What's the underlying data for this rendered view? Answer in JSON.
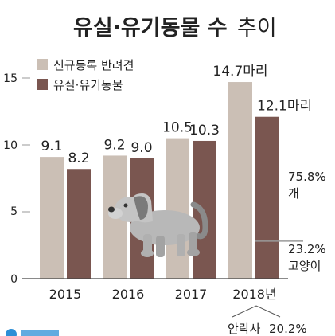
{
  "chart_data": {
    "type": "bar",
    "title_main": "유실·유기동물 수",
    "title_sub": "추이",
    "legend": [
      "신규등록 반려견",
      "유실·유기동물"
    ],
    "categories": [
      "2015",
      "2016",
      "2017",
      "2018년"
    ],
    "series": [
      {
        "name": "신규등록 반려견",
        "values": [
          9.1,
          9.2,
          10.5,
          14.7
        ],
        "labels": [
          "9.1",
          "9.2",
          "10.5",
          "14.7마리"
        ],
        "color": "#cbbfb5"
      },
      {
        "name": "유실·유기동물",
        "values": [
          8.2,
          9.0,
          10.3,
          12.1
        ],
        "labels": [
          "8.2",
          "9.0",
          "10.3",
          "12.1마리"
        ],
        "color": "#7a5650"
      }
    ],
    "y_ticks": [
      "0",
      "5",
      "10",
      "15"
    ],
    "ylim": [
      0,
      15
    ],
    "breakdown_2018": {
      "split_fraction": 0.232,
      "dog_label": "75.8%",
      "dog_unit": "개",
      "cat_label": "23.2%",
      "cat_unit": "고양이"
    },
    "euthanasia": {
      "label": "안락사",
      "value": "20.2%"
    },
    "colors": {
      "baseline": "#444444",
      "title": "#222222"
    }
  }
}
